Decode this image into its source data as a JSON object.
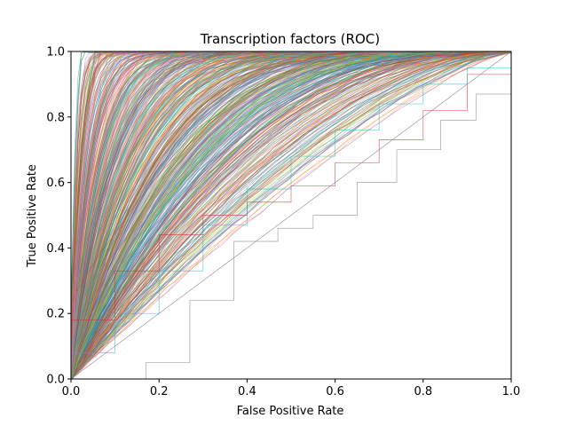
{
  "chart_data": {
    "type": "line",
    "title": "Transcription factors (ROC)",
    "xlabel": "False Positive Rate",
    "ylabel": "True Positive Rate",
    "xlim": [
      0,
      1
    ],
    "ylim": [
      0,
      1
    ],
    "x_ticks": [
      "0.0",
      "0.2",
      "0.4",
      "0.6",
      "0.8",
      "1.0"
    ],
    "y_ticks": [
      "0.0",
      "0.2",
      "0.4",
      "0.6",
      "0.8",
      "1.0"
    ],
    "grid": false,
    "legend": "none",
    "diagonal_reference": true,
    "series_count_approx": 600,
    "series_auc_range": [
      0.55,
      0.99
    ],
    "palette": [
      "#1f77b4",
      "#ff7f0e",
      "#2ca02c",
      "#d62728",
      "#9467bd",
      "#8c564b",
      "#e377c2",
      "#7f7f7f",
      "#bcbd22",
      "#17becf"
    ],
    "highlight_series": [
      {
        "color": "#d62728",
        "x": [
          0,
          0.1,
          0.2,
          0.3,
          0.4,
          0.5,
          0.6,
          0.7,
          0.8,
          0.9,
          1.0
        ],
        "y": [
          0.18,
          0.33,
          0.44,
          0.5,
          0.54,
          0.59,
          0.66,
          0.73,
          0.82,
          0.93,
          1.0
        ]
      },
      {
        "color": "#7f7f7f",
        "x": [
          0,
          0.17,
          0.27,
          0.37,
          0.47,
          0.55,
          0.65,
          0.74,
          0.84,
          0.92,
          1.0
        ],
        "y": [
          0,
          0.05,
          0.24,
          0.42,
          0.46,
          0.5,
          0.6,
          0.7,
          0.79,
          0.87,
          1.0
        ]
      },
      {
        "color": "#17becf",
        "x": [
          0,
          0.1,
          0.2,
          0.3,
          0.4,
          0.5,
          0.6,
          0.7,
          0.8,
          0.9,
          1.0
        ],
        "y": [
          0.08,
          0.2,
          0.33,
          0.47,
          0.58,
          0.68,
          0.76,
          0.84,
          0.9,
          0.95,
          1.0
        ]
      }
    ]
  }
}
